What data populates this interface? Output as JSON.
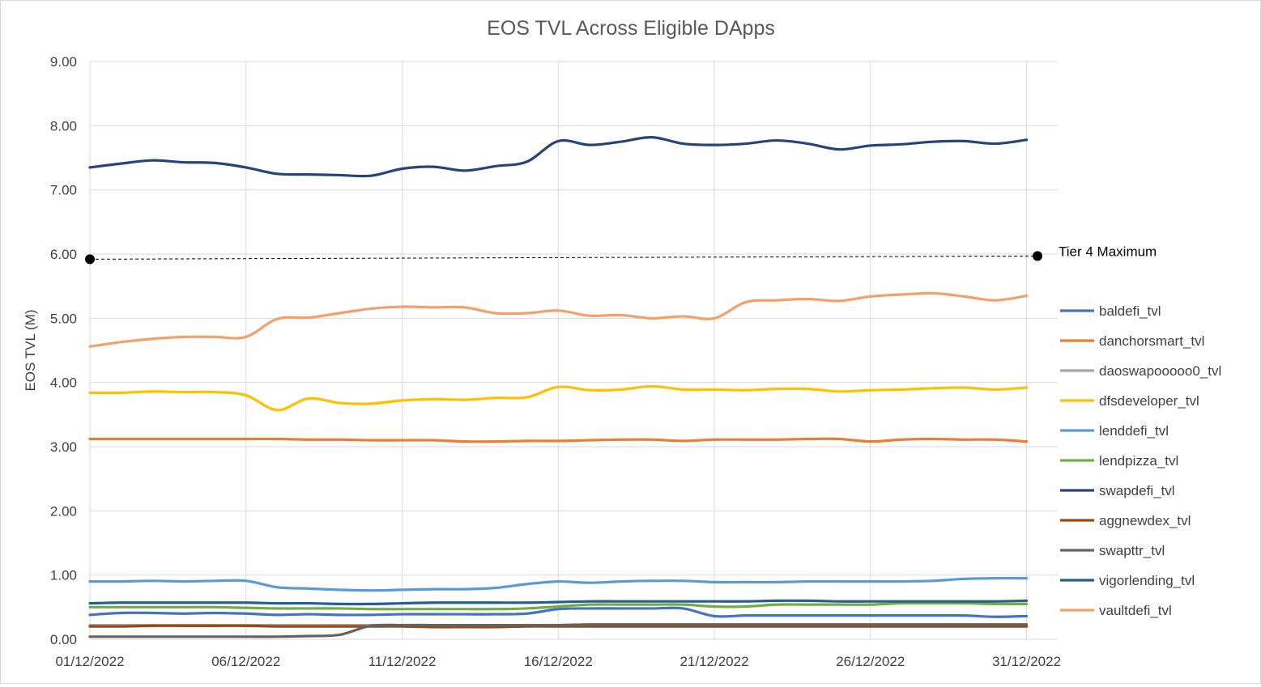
{
  "chart_data": {
    "type": "line",
    "title": "EOS TVL Across Eligible DApps",
    "xlabel": "",
    "ylabel": "EOS TVL (M)",
    "ylim": [
      0,
      9
    ],
    "yticks": [
      "0.00",
      "1.00",
      "2.00",
      "3.00",
      "4.00",
      "5.00",
      "6.00",
      "7.00",
      "8.00",
      "9.00"
    ],
    "xlim": [
      "01/12/2022",
      "31/12/2022"
    ],
    "xticks": [
      {
        "label": "01/12/2022",
        "day": 1
      },
      {
        "label": "06/12/2022",
        "day": 6
      },
      {
        "label": "11/12/2022",
        "day": 11
      },
      {
        "label": "16/12/2022",
        "day": 16
      },
      {
        "label": "21/12/2022",
        "day": 21
      },
      {
        "label": "26/12/2022",
        "day": 26
      },
      {
        "label": "31/12/2022",
        "day": 31
      }
    ],
    "grid": true,
    "legend_position": "right",
    "x_days": [
      1,
      2,
      3,
      4,
      5,
      6,
      7,
      8,
      9,
      10,
      11,
      12,
      13,
      14,
      15,
      16,
      17,
      18,
      19,
      20,
      21,
      22,
      23,
      24,
      25,
      26,
      27,
      28,
      29,
      30,
      31
    ],
    "reference_line": {
      "label": "Tier 4 Maximum",
      "values": [
        5.92,
        5.97
      ],
      "color": "#000000"
    },
    "series": [
      {
        "name": "baldefi_tvl",
        "color": "#4472c4",
        "values": [
          0.38,
          0.41,
          0.41,
          0.4,
          0.41,
          0.4,
          0.38,
          0.39,
          0.38,
          0.38,
          0.39,
          0.39,
          0.39,
          0.39,
          0.4,
          0.47,
          0.48,
          0.48,
          0.48,
          0.48,
          0.36,
          0.37,
          0.37,
          0.37,
          0.37,
          0.37,
          0.37,
          0.37,
          0.37,
          0.35,
          0.36
        ]
      },
      {
        "name": "danchorsmart_tvl",
        "color": "#ed7d31",
        "values": [
          3.12,
          3.12,
          3.12,
          3.12,
          3.12,
          3.12,
          3.12,
          3.11,
          3.11,
          3.1,
          3.1,
          3.1,
          3.08,
          3.08,
          3.09,
          3.09,
          3.1,
          3.11,
          3.11,
          3.09,
          3.11,
          3.11,
          3.11,
          3.12,
          3.12,
          3.08,
          3.11,
          3.12,
          3.11,
          3.11,
          3.08
        ]
      },
      {
        "name": "daoswapooooo0_tvl",
        "color": "#a5a5a5",
        "values": [
          0.22,
          0.22,
          0.22,
          0.22,
          0.22,
          0.22,
          0.22,
          0.22,
          0.22,
          0.22,
          0.22,
          0.22,
          0.22,
          0.22,
          0.22,
          0.22,
          0.22,
          0.22,
          0.22,
          0.22,
          0.22,
          0.22,
          0.22,
          0.22,
          0.22,
          0.22,
          0.22,
          0.22,
          0.22,
          0.22,
          0.22
        ]
      },
      {
        "name": "dfsdeveloper_tvl",
        "color": "#ffc000",
        "values": [
          3.84,
          3.84,
          3.86,
          3.85,
          3.85,
          3.8,
          3.57,
          3.75,
          3.68,
          3.67,
          3.72,
          3.74,
          3.73,
          3.76,
          3.77,
          3.93,
          3.88,
          3.89,
          3.94,
          3.89,
          3.89,
          3.88,
          3.9,
          3.9,
          3.86,
          3.88,
          3.89,
          3.91,
          3.92,
          3.89,
          3.92
        ]
      },
      {
        "name": "lenddefi_tvl",
        "color": "#5b9bd5",
        "values": [
          0.9,
          0.9,
          0.91,
          0.9,
          0.91,
          0.91,
          0.81,
          0.79,
          0.77,
          0.76,
          0.77,
          0.78,
          0.78,
          0.8,
          0.86,
          0.9,
          0.88,
          0.9,
          0.91,
          0.91,
          0.89,
          0.89,
          0.89,
          0.9,
          0.9,
          0.9,
          0.9,
          0.91,
          0.94,
          0.95,
          0.95
        ]
      },
      {
        "name": "lendpizza_tvl",
        "color": "#70ad47",
        "values": [
          0.5,
          0.5,
          0.5,
          0.5,
          0.5,
          0.49,
          0.48,
          0.48,
          0.48,
          0.47,
          0.47,
          0.47,
          0.47,
          0.47,
          0.48,
          0.51,
          0.54,
          0.54,
          0.54,
          0.54,
          0.51,
          0.51,
          0.54,
          0.54,
          0.54,
          0.54,
          0.56,
          0.56,
          0.56,
          0.55,
          0.55
        ]
      },
      {
        "name": "swapdefi_tvl",
        "color": "#264478",
        "values": [
          7.35,
          7.41,
          7.46,
          7.43,
          7.42,
          7.35,
          7.25,
          7.24,
          7.23,
          7.22,
          7.33,
          7.36,
          7.3,
          7.37,
          7.44,
          7.76,
          7.7,
          7.75,
          7.82,
          7.72,
          7.7,
          7.72,
          7.77,
          7.72,
          7.63,
          7.69,
          7.71,
          7.75,
          7.76,
          7.72,
          7.78
        ]
      },
      {
        "name": "aggnewdex_tvl",
        "color": "#9e480e",
        "values": [
          0.2,
          0.2,
          0.21,
          0.21,
          0.21,
          0.21,
          0.2,
          0.2,
          0.2,
          0.2,
          0.2,
          0.19,
          0.19,
          0.19,
          0.2,
          0.2,
          0.2,
          0.2,
          0.2,
          0.2,
          0.2,
          0.2,
          0.2,
          0.2,
          0.2,
          0.2,
          0.2,
          0.2,
          0.2,
          0.2,
          0.2
        ]
      },
      {
        "name": "swapttr_tvl",
        "color": "#636363",
        "values": [
          0.04,
          0.04,
          0.04,
          0.04,
          0.04,
          0.04,
          0.04,
          0.05,
          0.07,
          0.21,
          0.22,
          0.22,
          0.22,
          0.22,
          0.22,
          0.22,
          0.23,
          0.23,
          0.23,
          0.23,
          0.23,
          0.23,
          0.23,
          0.23,
          0.23,
          0.23,
          0.23,
          0.23,
          0.23,
          0.23,
          0.23
        ]
      },
      {
        "name": "vigorlending_tvl",
        "color": "#255e91",
        "values": [
          0.56,
          0.57,
          0.57,
          0.57,
          0.57,
          0.57,
          0.56,
          0.56,
          0.55,
          0.55,
          0.56,
          0.57,
          0.57,
          0.57,
          0.57,
          0.58,
          0.59,
          0.59,
          0.59,
          0.59,
          0.59,
          0.59,
          0.6,
          0.6,
          0.59,
          0.59,
          0.59,
          0.59,
          0.59,
          0.59,
          0.6
        ]
      },
      {
        "name": "vaultdefi_tvl",
        "color": "#f4a06a",
        "values": [
          4.56,
          4.63,
          4.68,
          4.71,
          4.71,
          4.71,
          4.99,
          5.01,
          5.08,
          5.15,
          5.18,
          5.17,
          5.17,
          5.08,
          5.08,
          5.12,
          5.04,
          5.05,
          5.0,
          5.03,
          5.0,
          5.25,
          5.28,
          5.3,
          5.27,
          5.34,
          5.37,
          5.39,
          5.34,
          5.28,
          5.35
        ]
      }
    ]
  }
}
